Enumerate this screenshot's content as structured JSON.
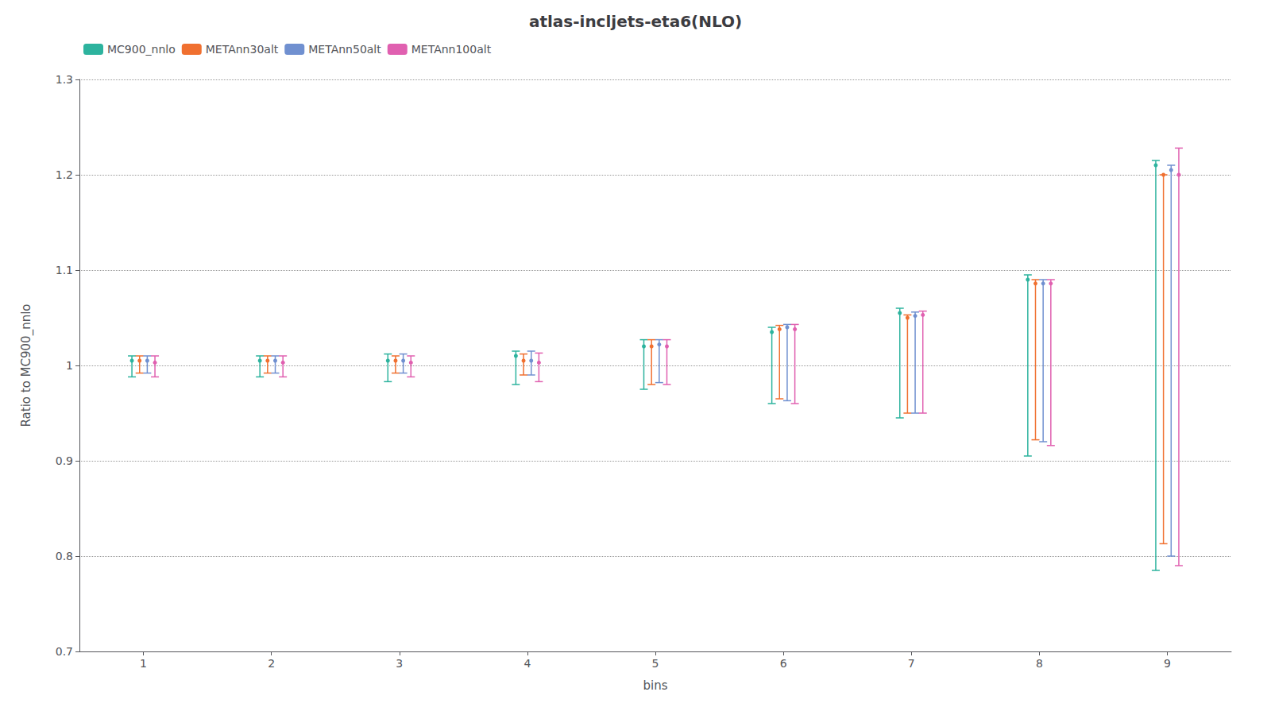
{
  "chart_data": {
    "type": "errorbar",
    "title": "atlas-incljets-eta6(NLO)",
    "xlabel": "bins",
    "ylabel": "Ratio to MC900_nnlo",
    "x": [
      1,
      2,
      3,
      4,
      5,
      6,
      7,
      8,
      9
    ],
    "xlim": [
      0.5,
      9.5
    ],
    "xticks": [
      1,
      2,
      3,
      4,
      5,
      6,
      7,
      8,
      9
    ],
    "ylim": [
      0.7,
      1.3
    ],
    "yticks": [
      0.7,
      0.8,
      0.9,
      1.0,
      1.1,
      1.2,
      1.3
    ],
    "grid": true,
    "legend": "upper left",
    "series": [
      {
        "name": "MC900_nnlo",
        "color": "#2db39e",
        "values": [
          1.005,
          1.005,
          1.005,
          1.01,
          1.02,
          1.035,
          1.055,
          1.09,
          1.21
        ],
        "lo": [
          0.988,
          0.988,
          0.983,
          0.98,
          0.975,
          0.96,
          0.945,
          0.905,
          0.785
        ],
        "hi": [
          1.01,
          1.01,
          1.012,
          1.015,
          1.027,
          1.04,
          1.06,
          1.095,
          1.215
        ]
      },
      {
        "name": "METAnn30alt",
        "color": "#f07030",
        "values": [
          1.005,
          1.005,
          1.005,
          1.005,
          1.02,
          1.038,
          1.05,
          1.086,
          1.2
        ],
        "lo": [
          0.992,
          0.992,
          0.992,
          0.99,
          0.98,
          0.965,
          0.95,
          0.922,
          0.813
        ],
        "hi": [
          1.01,
          1.01,
          1.01,
          1.012,
          1.027,
          1.042,
          1.053,
          1.09,
          1.2
        ]
      },
      {
        "name": "METAnn50alt",
        "color": "#7090d0",
        "values": [
          1.005,
          1.005,
          1.005,
          1.005,
          1.022,
          1.04,
          1.052,
          1.086,
          1.205
        ],
        "lo": [
          0.992,
          0.992,
          0.992,
          0.99,
          0.982,
          0.963,
          0.95,
          0.92,
          0.8
        ],
        "hi": [
          1.01,
          1.01,
          1.012,
          1.015,
          1.027,
          1.043,
          1.056,
          1.09,
          1.21
        ]
      },
      {
        "name": "METAnn100alt",
        "color": "#e060b0",
        "values": [
          1.003,
          1.003,
          1.003,
          1.003,
          1.02,
          1.038,
          1.053,
          1.086,
          1.2
        ],
        "lo": [
          0.988,
          0.988,
          0.988,
          0.983,
          0.98,
          0.96,
          0.95,
          0.916,
          0.79
        ],
        "hi": [
          1.01,
          1.01,
          1.01,
          1.013,
          1.027,
          1.043,
          1.057,
          1.09,
          1.228
        ]
      }
    ]
  }
}
